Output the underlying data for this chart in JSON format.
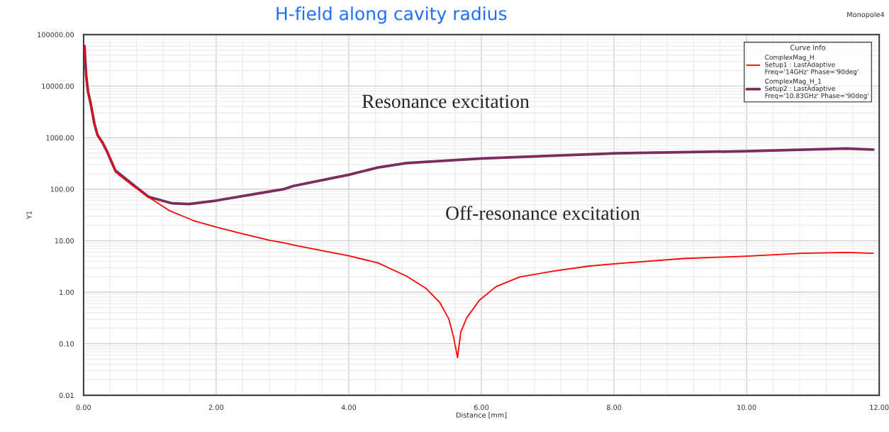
{
  "chart_data": {
    "type": "line",
    "title": "H-field along cavity radius",
    "xlabel": "Distance [mm]",
    "ylabel": "Y1",
    "legend_title": "Curve Info",
    "annotations": [
      "Resonance excitation",
      "Off-resonance excitation",
      "Monopole4"
    ],
    "log": "y",
    "grid": true,
    "legend": "top right",
    "marker": "none",
    "line_style": "solid",
    "xlim": [
      0,
      12
    ],
    "xticks": [
      {
        "value": 0,
        "label": "0.00"
      },
      {
        "value": 2,
        "label": "2.00"
      },
      {
        "value": 4,
        "label": "4.00"
      },
      {
        "value": 6,
        "label": "6.00"
      },
      {
        "value": 8,
        "label": "8.00"
      },
      {
        "value": 10,
        "label": "10.00"
      },
      {
        "value": 12,
        "label": "12.00"
      }
    ],
    "ylim": [
      0.01,
      100000
    ],
    "yticks": [
      {
        "value": 0.01,
        "label": "0.01"
      },
      {
        "value": 0.1,
        "label": "0.10"
      },
      {
        "value": 1,
        "label": "1.00"
      },
      {
        "value": 10,
        "label": "10.00"
      },
      {
        "value": 100,
        "label": "100.00"
      },
      {
        "value": 1000,
        "label": "1000.00"
      },
      {
        "value": 10000,
        "label": "10000.00"
      },
      {
        "value": 100000,
        "label": "100000.00"
      }
    ],
    "series": [
      {
        "name": "ComplexMag_H\nSetup1 : LastAdaptive\nFreq='14GHz' Phase='90deg'",
        "color": "#ff0000",
        "x": [
          0.014,
          0.04,
          0.067,
          0.11,
          0.164,
          0.21,
          0.29,
          0.36,
          0.45,
          0.48,
          0.73,
          1.02,
          1.3,
          1.38,
          1.66,
          2.0,
          2.41,
          2.8,
          3.02,
          3.23,
          4.0,
          4.44,
          4.87,
          5.16,
          5.37,
          5.51,
          5.58,
          5.64,
          5.69,
          5.78,
          5.97,
          6.22,
          6.58,
          7.11,
          7.61,
          8.01,
          9.04,
          10.0,
          10.82,
          11.5,
          11.91
        ],
        "values": [
          60000,
          15500,
          7900,
          4400,
          1850,
          1130,
          780,
          520,
          280,
          214,
          120,
          65,
          38,
          34.5,
          24.5,
          18.3,
          13.5,
          10.2,
          9.1,
          7.9,
          5.1,
          3.7,
          2.05,
          1.2,
          0.64,
          0.3,
          0.135,
          0.054,
          0.17,
          0.32,
          0.7,
          1.28,
          1.98,
          2.6,
          3.2,
          3.55,
          4.5,
          5.0,
          5.7,
          5.9,
          5.7
        ]
      },
      {
        "name": "ComplexMag_H_1\nSetup2 : LastAdaptive\nFreq='10.83GHz' Phase='90deg'",
        "color": "#7b2d5e",
        "x": [
          0.014,
          0.04,
          0.067,
          0.11,
          0.164,
          0.21,
          0.29,
          0.36,
          0.45,
          0.48,
          0.73,
          0.98,
          1.34,
          1.59,
          2.0,
          2.59,
          3.02,
          3.16,
          4.0,
          4.44,
          4.87,
          6.01,
          7.83,
          8.01,
          10.0,
          11.5,
          11.91
        ],
        "values": [
          60000,
          15500,
          7900,
          4400,
          1850,
          1130,
          780,
          520,
          280,
          229,
          127,
          71,
          53,
          51.5,
          60,
          81,
          100,
          115,
          190,
          263,
          320,
          395,
          485,
          495,
          545,
          615,
          585
        ]
      }
    ]
  }
}
